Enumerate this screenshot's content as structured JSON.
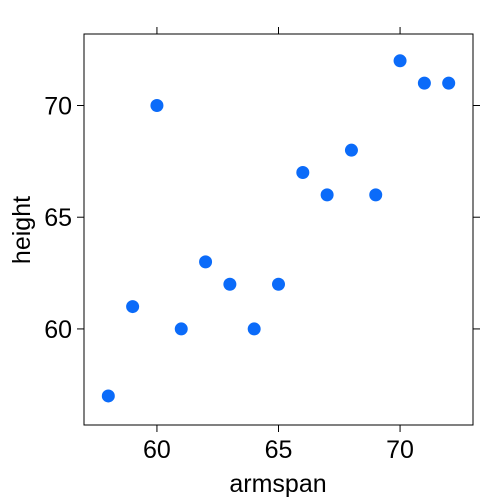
{
  "chart_data": {
    "type": "scatter",
    "xlabel": "armspan",
    "ylabel": "height",
    "xlim": [
      57,
      73
    ],
    "ylim": [
      55.7,
      73.2
    ],
    "xticks": [
      60,
      65,
      70
    ],
    "yticks": [
      60,
      65,
      70
    ],
    "xtick_labels": [
      "60",
      "65",
      "70"
    ],
    "ytick_labels": [
      "60",
      "65",
      "70"
    ],
    "grid": false,
    "marker_color": "#0b6bf9",
    "points": [
      {
        "x": 58,
        "y": 57
      },
      {
        "x": 59,
        "y": 61
      },
      {
        "x": 60,
        "y": 70
      },
      {
        "x": 61,
        "y": 60
      },
      {
        "x": 62,
        "y": 63
      },
      {
        "x": 63,
        "y": 62
      },
      {
        "x": 64,
        "y": 60
      },
      {
        "x": 65,
        "y": 62
      },
      {
        "x": 66,
        "y": 67
      },
      {
        "x": 67,
        "y": 66
      },
      {
        "x": 68,
        "y": 68
      },
      {
        "x": 69,
        "y": 66
      },
      {
        "x": 70,
        "y": 72
      },
      {
        "x": 71,
        "y": 71
      },
      {
        "x": 72,
        "y": 71
      }
    ]
  }
}
